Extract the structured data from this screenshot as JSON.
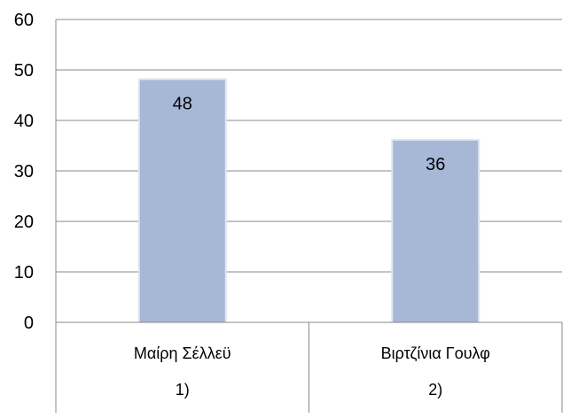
{
  "chart_data": {
    "type": "bar",
    "categories": [
      {
        "label": "Μαίρη Σέλλεϋ",
        "number": "1)"
      },
      {
        "label": "Βιρτζίνια Γουλφ",
        "number": "2)"
      }
    ],
    "values": [
      48,
      36
    ],
    "data_labels": [
      "48",
      "36"
    ],
    "ylim": [
      0,
      60
    ],
    "yticks": [
      0,
      10,
      20,
      30,
      40,
      50,
      60
    ],
    "ytick_labels": [
      "0",
      "10",
      "20",
      "30",
      "40",
      "50",
      "60"
    ],
    "grid": true,
    "legend": "none",
    "colors": {
      "bar": "#a6b8d6",
      "bar_edge": "#dfe6f1",
      "grid": "#888888",
      "axis": "#888888"
    }
  }
}
